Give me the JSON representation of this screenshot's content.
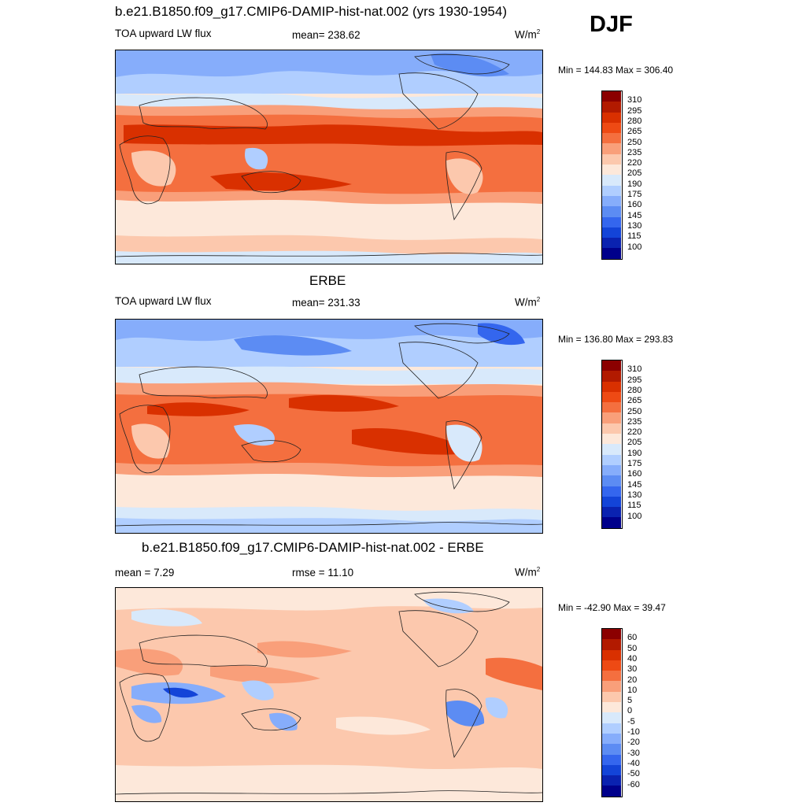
{
  "season": "DJF",
  "panels": [
    {
      "id": "model",
      "title": "b.e21.B1850.f09_g17.CMIP6-DAMIP-hist-nat.002 (yrs 1930-1954)",
      "left_label": "TOA upward LW flux",
      "center_label": "mean= 238.62",
      "units_base": "W/m",
      "units_exp": "2",
      "minmax": "Min = 144.83 Max = 306.40"
    },
    {
      "id": "obs",
      "title": "ERBE",
      "left_label": "TOA upward LW flux",
      "center_label": "mean= 231.33",
      "units_base": "W/m",
      "units_exp": "2",
      "minmax": "Min = 136.80 Max = 293.83"
    },
    {
      "id": "diff",
      "title": "b.e21.B1850.f09_g17.CMIP6-DAMIP-hist-nat.002 - ERBE",
      "left_label": "mean =   7.29",
      "center_label": "rmse =  11.10",
      "units_base": "W/m",
      "units_exp": "2",
      "minmax": "Min = -42.90 Max =  39.47"
    }
  ],
  "chart_data": [
    {
      "type": "heatmap",
      "title": "b.e21.B1850.f09_g17.CMIP6-DAMIP-hist-nat.002 (yrs 1930-1954)",
      "variable": "TOA upward LW flux",
      "units": "W/m2",
      "season": "DJF",
      "mean": 238.62,
      "min": 144.83,
      "max": 306.4,
      "colorbar_levels": [
        "310",
        "295",
        "280",
        "265",
        "250",
        "235",
        "220",
        "205",
        "190",
        "175",
        "160",
        "145",
        "130",
        "115",
        "100"
      ],
      "colorbar_colors": [
        "#8b0000",
        "#b21a00",
        "#d93000",
        "#ee4a14",
        "#f46f3f",
        "#f99f7a",
        "#fcc8ad",
        "#fde8da",
        "#d8e9fb",
        "#b0ceff",
        "#86adfb",
        "#5c8cf3",
        "#3466ee",
        "#1344d8",
        "#0a22b0",
        "#00008b"
      ]
    },
    {
      "type": "heatmap",
      "title": "ERBE",
      "variable": "TOA upward LW flux",
      "units": "W/m2",
      "season": "DJF",
      "mean": 231.33,
      "min": 136.8,
      "max": 293.83,
      "colorbar_levels": [
        "310",
        "295",
        "280",
        "265",
        "250",
        "235",
        "220",
        "205",
        "190",
        "175",
        "160",
        "145",
        "130",
        "115",
        "100"
      ],
      "colorbar_colors": [
        "#8b0000",
        "#b21a00",
        "#d93000",
        "#ee4a14",
        "#f46f3f",
        "#f99f7a",
        "#fcc8ad",
        "#fde8da",
        "#d8e9fb",
        "#b0ceff",
        "#86adfb",
        "#5c8cf3",
        "#3466ee",
        "#1344d8",
        "#0a22b0",
        "#00008b"
      ]
    },
    {
      "type": "heatmap",
      "title": "b.e21.B1850.f09_g17.CMIP6-DAMIP-hist-nat.002 - ERBE",
      "units": "W/m2",
      "season": "DJF",
      "mean": 7.29,
      "rmse": 11.1,
      "min": -42.9,
      "max": 39.47,
      "colorbar_levels": [
        "60",
        "50",
        "40",
        "30",
        "20",
        "10",
        "5",
        "0",
        "-5",
        "-10",
        "-20",
        "-30",
        "-40",
        "-50",
        "-60"
      ],
      "colorbar_colors": [
        "#8b0000",
        "#b21a00",
        "#d93000",
        "#ee4a14",
        "#f46f3f",
        "#f99f7a",
        "#fcc8ad",
        "#fde8da",
        "#d8e9fb",
        "#b0ceff",
        "#86adfb",
        "#5c8cf3",
        "#3466ee",
        "#1344d8",
        "#0a22b0",
        "#00008b"
      ]
    }
  ]
}
